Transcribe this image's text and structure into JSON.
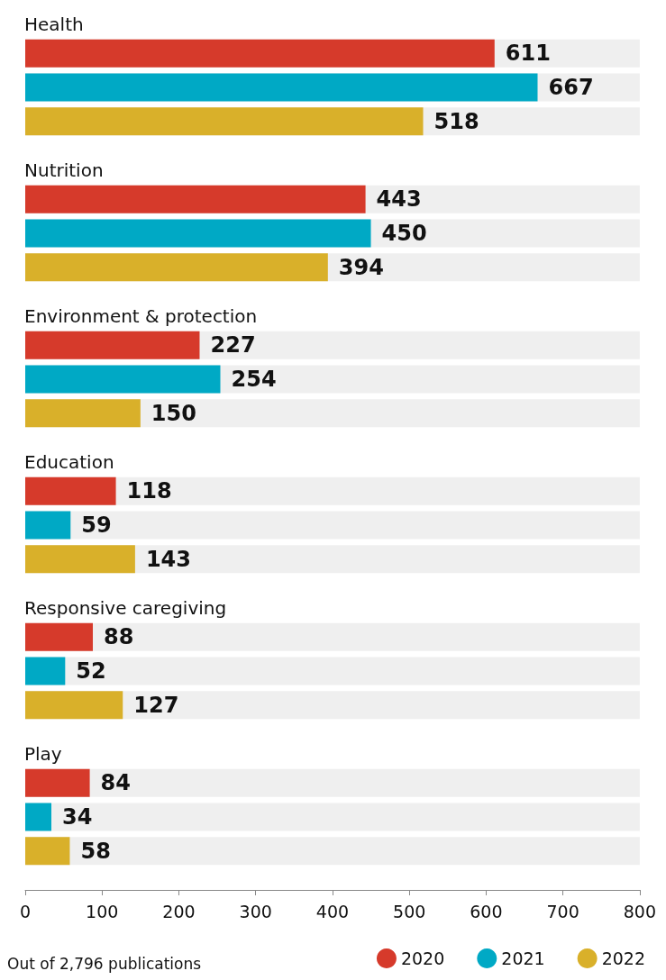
{
  "chart_data": {
    "type": "bar",
    "orientation": "horizontal",
    "categories": [
      "Health",
      "Nutrition",
      "Environment & protection",
      "Education",
      "Responsive caregiving",
      "Play"
    ],
    "series": [
      {
        "name": "2020",
        "color": "#d63a2b",
        "values": [
          611,
          443,
          227,
          118,
          88,
          84
        ]
      },
      {
        "name": "2021",
        "color": "#00a9c5",
        "values": [
          667,
          450,
          254,
          59,
          52,
          34
        ]
      },
      {
        "name": "2022",
        "color": "#d9b02a",
        "values": [
          518,
          394,
          150,
          143,
          127,
          58
        ]
      }
    ],
    "xlim": [
      0,
      800
    ],
    "xticks": [
      0,
      100,
      200,
      300,
      400,
      500,
      600,
      700,
      800
    ],
    "data_labels": true,
    "legend": "bottom right",
    "annotations": [
      "Out of 2,796 publications"
    ]
  }
}
